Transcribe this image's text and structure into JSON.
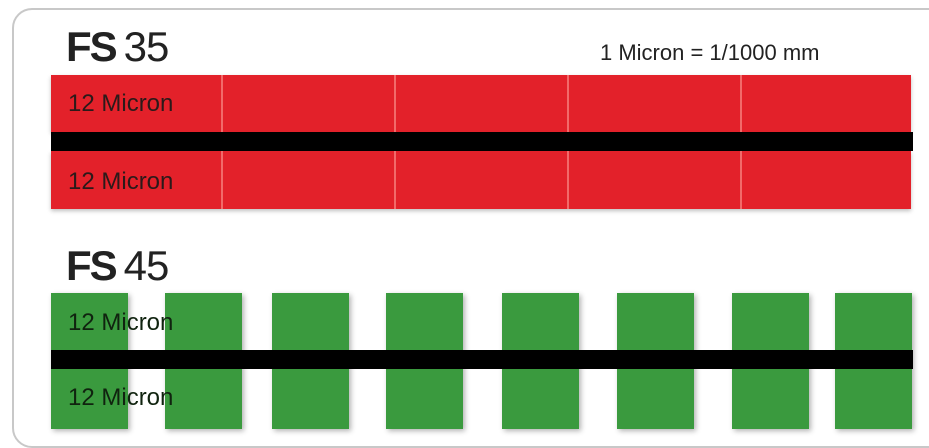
{
  "fs35": {
    "brand": "FS",
    "number": "35",
    "unit_note": "1 Micron = 1/1000 mm",
    "top_label": "12 Micron",
    "bottom_label": "12 Micron"
  },
  "fs45": {
    "brand": "FS",
    "number": "45",
    "top_label": "12 Micron",
    "bottom_label": "12 Micron"
  },
  "colors": {
    "red": "#e3212a",
    "green": "#3a9a3e",
    "separator": "#000000"
  }
}
